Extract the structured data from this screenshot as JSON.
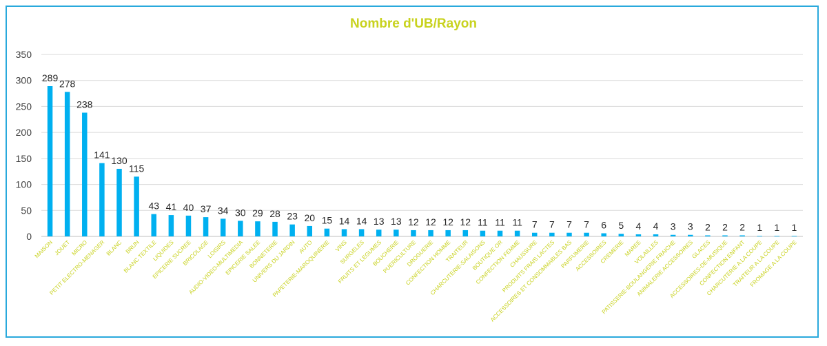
{
  "chart_data": {
    "type": "bar",
    "title": "Nombre d'UB/Rayon",
    "xlabel": "",
    "ylabel": "",
    "ylim": [
      0,
      350
    ],
    "yticks": [
      0,
      50,
      100,
      150,
      200,
      250,
      300,
      350
    ],
    "grid": true,
    "legend": "none",
    "colors": {
      "bar": "#00b0f0",
      "title": "#c8d21e",
      "category_label": "#c8d21e",
      "frame": "#29a9dc",
      "grid": "#d9d9d9"
    },
    "categories": [
      "MAISON",
      "JOUET",
      "MICRO",
      "PETIT ELECTRO-MENAGER",
      "BLANC",
      "BRUN",
      "BLANC TEXTILE",
      "LIQUIDES",
      "EPICERIE SUCREE",
      "BRICOLAGE",
      "LOISIRS",
      "AUDIO-VIDEO-MULTIMEDIA",
      "EPICERIE SALEE",
      "BONNETERIE",
      "UNIVERS DU JARDIN",
      "AUTO",
      "PAPETERIE-MAROQUINERIE",
      "VINS",
      "SURGELES",
      "FRUITS ET LEGUMES",
      "BOUCHERIE",
      "PUERICULTURE",
      "DROGUERIE",
      "CONFECTION HOMME",
      "TRAITEUR",
      "CHARCUTERIE-SALAISONS",
      "BOUTIQUE OR",
      "CONFECTION FEMME",
      "CHAUSSURE",
      "PRODUITS FRAIS LACTES",
      "ACCESSOIRES ET CONSOMMABLES BAS",
      "PARFUMERIE",
      "ACCESSOIRES",
      "CREMERIE",
      "MAREE",
      "VOLAILLES",
      "PATISSERIE-BOULANGERIE FRAICHE",
      "ANIMALERIE ACCESSOIRES",
      "GLACES",
      "ACCESSOIRES-DE-MUSIQUE",
      "CONFECTION ENFANT",
      "CHARCUTERIE A LA COUPE",
      "TRAITEUR A LA COUPE",
      "FROMAGE A LA COUPE"
    ],
    "values": [
      289,
      278,
      238,
      141,
      130,
      115,
      43,
      41,
      40,
      37,
      34,
      30,
      29,
      28,
      23,
      20,
      15,
      14,
      14,
      13,
      13,
      12,
      12,
      12,
      12,
      11,
      11,
      11,
      7,
      7,
      7,
      7,
      6,
      5,
      4,
      4,
      3,
      3,
      2,
      2,
      2,
      1,
      1,
      1
    ]
  }
}
